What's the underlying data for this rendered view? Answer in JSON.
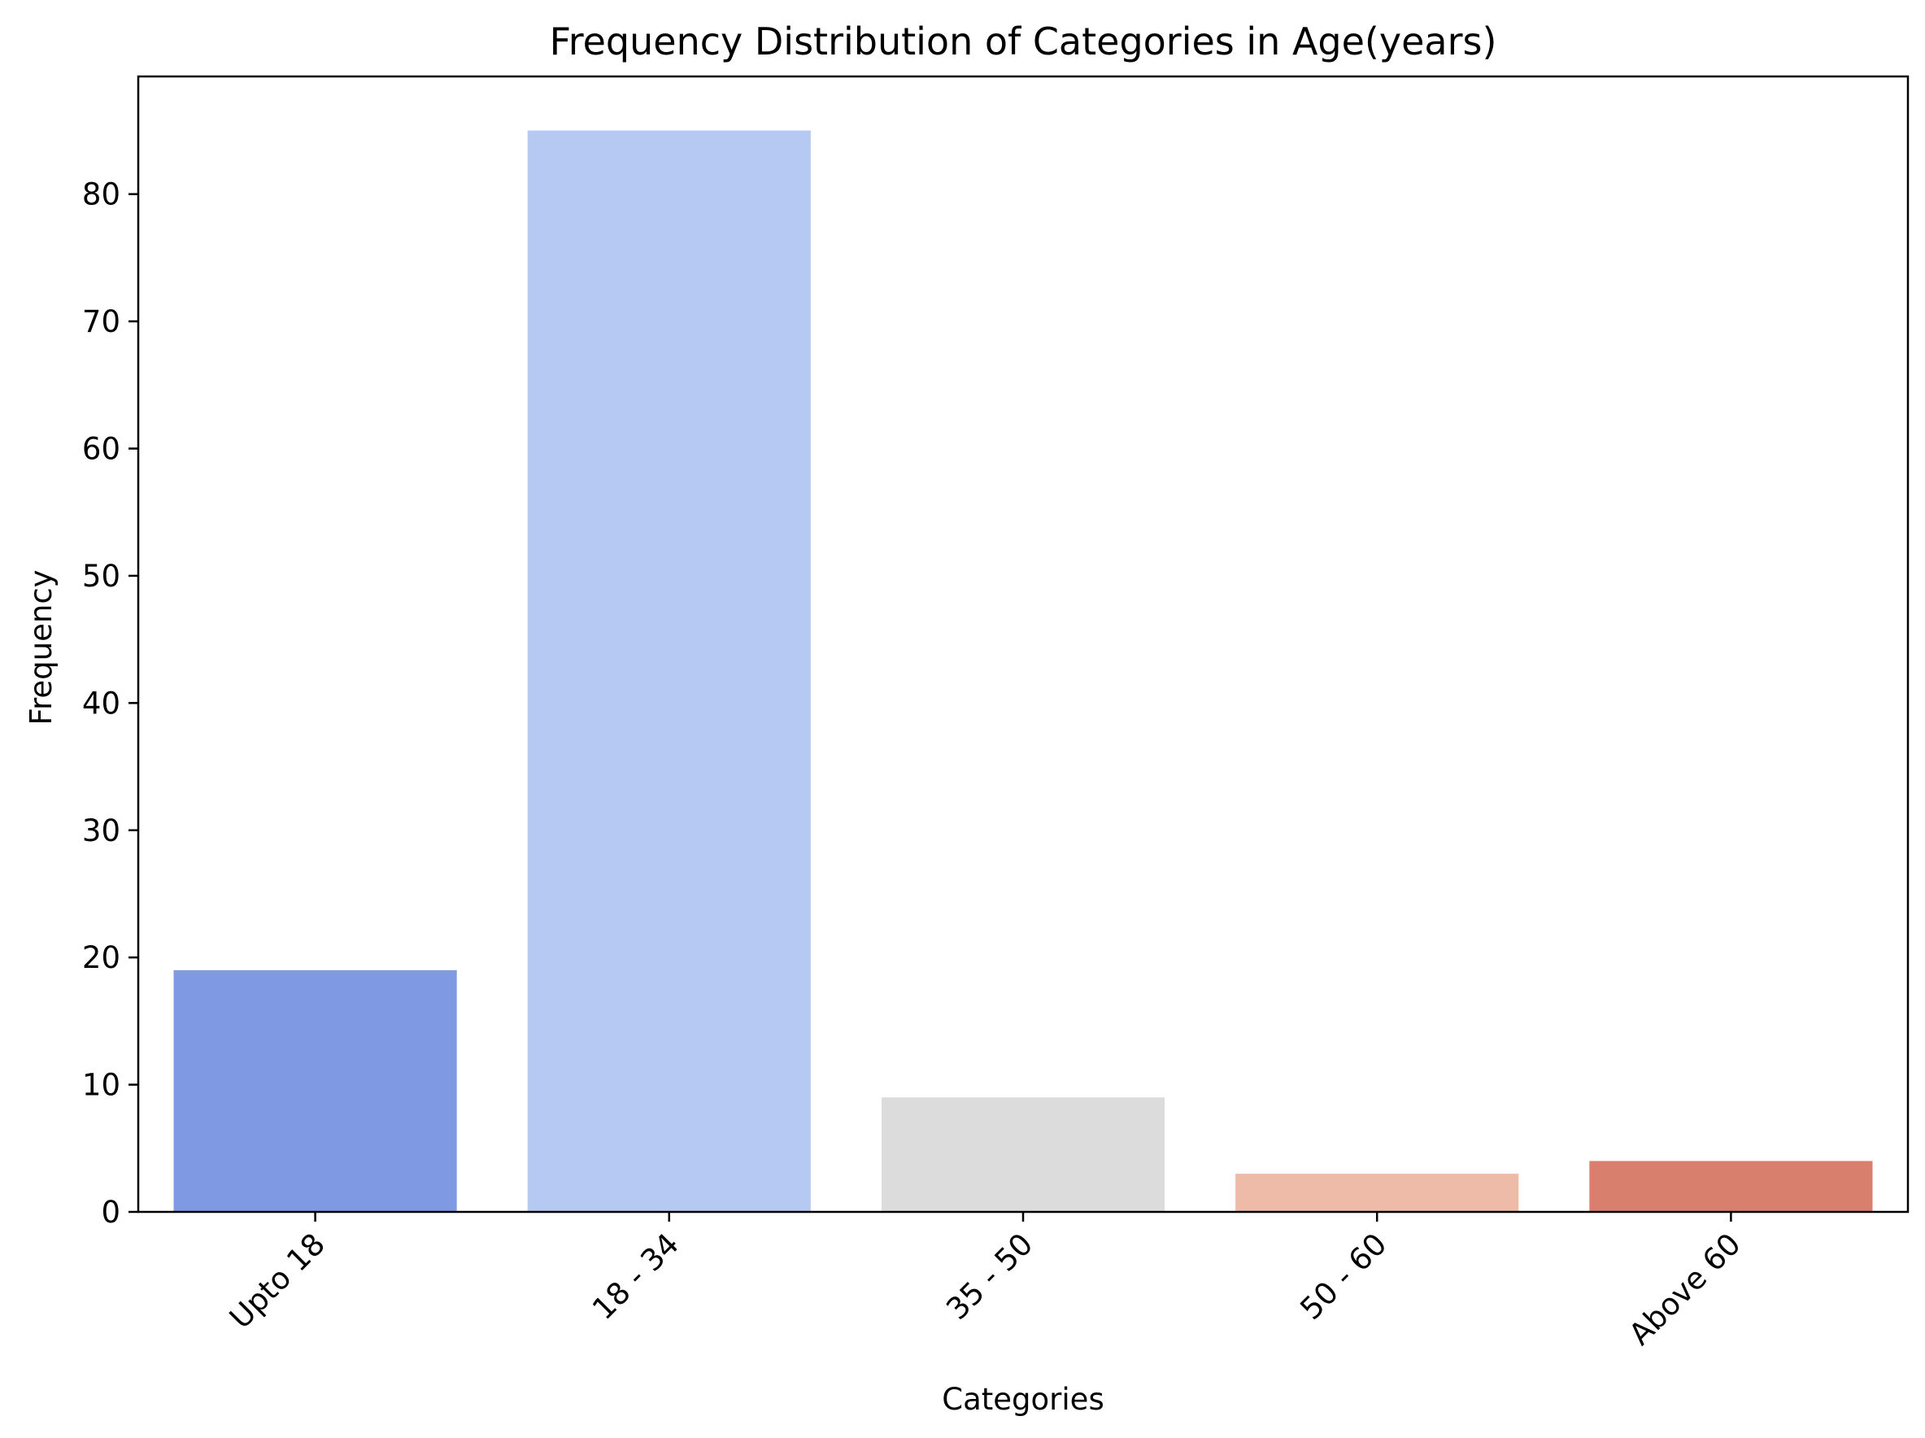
{
  "chart_data": {
    "type": "bar",
    "title": "Frequency Distribution of Categories in Age(years)",
    "xlabel": "Categories",
    "ylabel": "Frequency",
    "categories": [
      "Upto 18",
      "18 - 34",
      "35 - 50",
      "50 - 60",
      "Above 60"
    ],
    "values": [
      19,
      85,
      9,
      3,
      4
    ],
    "colors": [
      "#7f9ae2",
      "#b6c9f3",
      "#dcdcdc",
      "#edbba7",
      "#d8806d"
    ],
    "ylim": [
      0,
      89.25
    ],
    "yticks": [
      0,
      10,
      20,
      30,
      40,
      50,
      60,
      70,
      80
    ],
    "grid": false,
    "legend": "none"
  }
}
